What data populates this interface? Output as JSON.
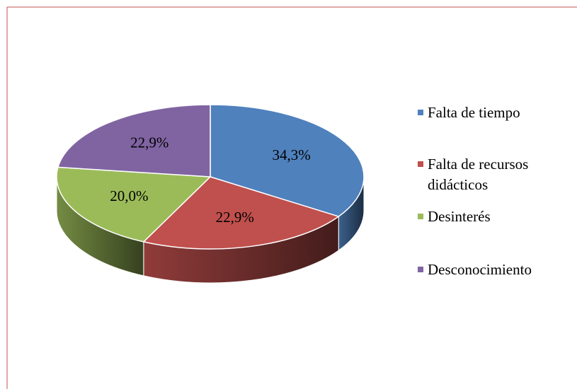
{
  "chart_data": {
    "type": "pie",
    "categories": [
      "Falta de tiempo",
      "Falta de recursos didácticos",
      "Desinterés",
      "Desconocimiento"
    ],
    "values": [
      34.3,
      22.9,
      20.0,
      22.9
    ],
    "value_labels": [
      "34,3%",
      "22,9%",
      "20,0%",
      "22,9%"
    ],
    "colors": [
      "#4f81bd",
      "#c0504d",
      "#9bbb59",
      "#8064a2"
    ],
    "legend": "right"
  }
}
